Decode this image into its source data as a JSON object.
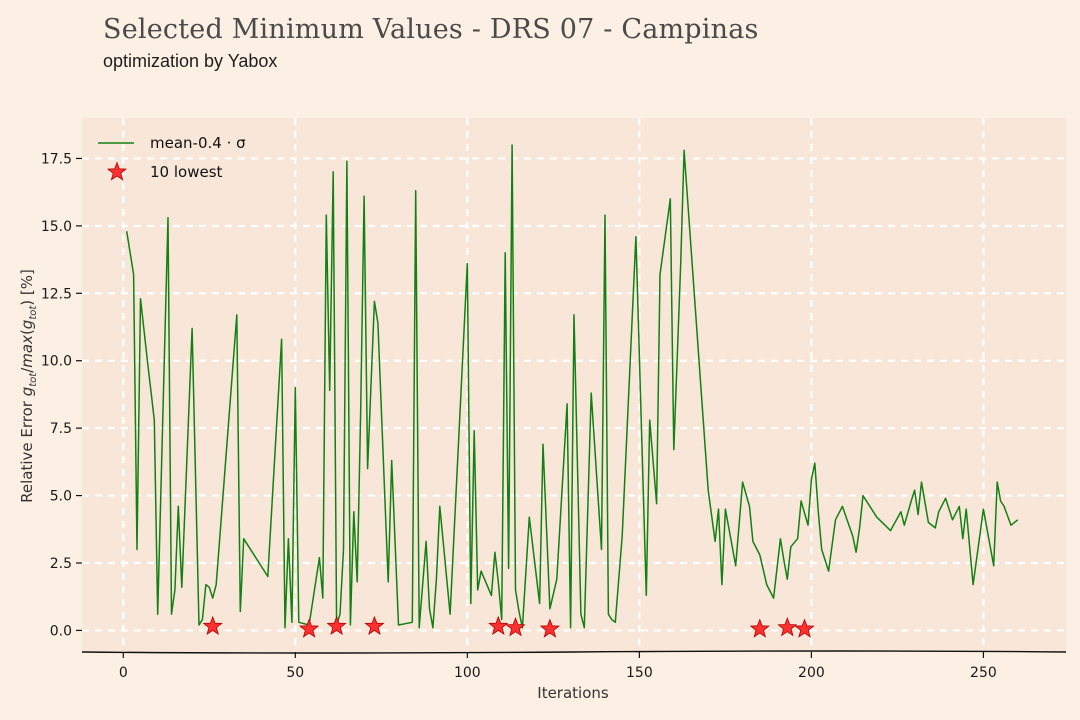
{
  "title": "Selected Minimum Values - DRS 07 - Campinas",
  "subtitle": "optimization by Yabox",
  "colors": {
    "figure_bg": "#fcf0e4",
    "plot_bg": "#f8e6d8",
    "grid": "#ffffff",
    "line": "#128012",
    "marker": "#ff3030"
  },
  "chart_data": {
    "type": "line",
    "title": "Selected Minimum Values - DRS 07 - Campinas",
    "subtitle": "optimization by Yabox",
    "xlabel": "Iterations",
    "ylabel": "Relative Error g_tot/max(g_tot) [%]",
    "xlim": [
      -12,
      274
    ],
    "ylim": [
      -0.8,
      19.0
    ],
    "xticks": [
      0,
      50,
      100,
      150,
      200,
      250
    ],
    "yticks": [
      0.0,
      2.5,
      5.0,
      7.5,
      10.0,
      12.5,
      15.0,
      17.5
    ],
    "xtick_labels": [
      "0",
      "50",
      "100",
      "150",
      "200",
      "250"
    ],
    "ytick_labels": [
      "0.0",
      "2.5",
      "5.0",
      "7.5",
      "10.0",
      "12.5",
      "15.0",
      "17.5"
    ],
    "grid": true,
    "legend_position": "top-left",
    "series": [
      {
        "name": "mean-0.4 · σ",
        "kind": "line",
        "x": [
          1,
          3,
          4,
          5,
          7,
          9,
          10,
          13,
          14,
          15,
          16,
          17,
          20,
          22,
          23,
          24,
          25,
          26,
          27,
          33,
          34,
          35,
          42,
          46,
          47,
          48,
          49,
          50,
          51,
          54,
          57,
          58,
          59,
          60,
          61,
          62,
          63,
          64,
          65,
          66,
          67,
          68,
          69,
          70,
          71,
          73,
          74,
          77,
          78,
          80,
          84,
          85,
          86,
          88,
          89,
          90,
          91,
          92,
          95,
          100,
          101,
          102,
          103,
          104,
          107,
          108,
          109,
          110,
          111,
          112,
          113,
          114,
          115,
          116,
          118,
          121,
          122,
          124,
          126,
          129,
          130,
          131,
          133,
          134,
          136,
          139,
          140,
          141,
          142,
          143,
          145,
          149,
          152,
          153,
          155,
          156,
          159,
          160,
          162,
          163,
          165,
          170,
          172,
          173,
          174,
          175,
          178,
          180,
          182,
          183,
          185,
          187,
          189,
          191,
          192,
          193,
          194,
          196,
          197,
          199,
          200,
          201,
          202,
          203,
          205,
          207,
          209,
          212,
          213,
          214,
          215,
          219,
          223,
          226,
          227,
          229,
          230,
          231,
          232,
          234,
          236,
          237,
          239,
          241,
          243,
          244,
          245,
          247,
          250,
          253,
          254,
          255,
          256,
          258,
          260
        ],
        "y": [
          14.8,
          13.2,
          3.0,
          12.3,
          10.0,
          7.8,
          0.6,
          15.3,
          0.6,
          1.5,
          4.6,
          1.6,
          11.2,
          0.2,
          0.4,
          1.7,
          1.6,
          1.2,
          1.7,
          11.7,
          0.7,
          3.4,
          2.0,
          10.8,
          0.1,
          3.4,
          0.3,
          9.0,
          0.3,
          0.2,
          2.7,
          1.2,
          15.4,
          8.9,
          17.0,
          0.2,
          0.6,
          3.0,
          17.4,
          0.2,
          4.4,
          1.8,
          8.2,
          16.1,
          6.0,
          12.2,
          11.4,
          1.8,
          6.3,
          0.2,
          0.3,
          16.3,
          0.1,
          3.3,
          0.8,
          0.1,
          1.9,
          4.6,
          0.6,
          13.6,
          1.0,
          7.4,
          1.5,
          2.2,
          1.3,
          2.9,
          1.8,
          0.4,
          14.0,
          2.3,
          18.0,
          1.5,
          0.7,
          0.1,
          4.2,
          1.0,
          6.9,
          0.8,
          1.9,
          8.4,
          0.1,
          11.7,
          0.6,
          0.1,
          8.8,
          3.0,
          15.4,
          0.6,
          0.4,
          0.3,
          3.5,
          14.6,
          1.3,
          7.8,
          4.7,
          13.2,
          16.0,
          6.7,
          13.6,
          17.8,
          14.2,
          5.2,
          3.3,
          4.5,
          1.7,
          4.5,
          2.4,
          5.5,
          4.6,
          3.3,
          2.8,
          1.7,
          1.2,
          3.4,
          2.6,
          1.9,
          3.1,
          3.4,
          4.8,
          3.9,
          5.6,
          6.2,
          4.4,
          3.0,
          2.2,
          4.1,
          4.6,
          3.5,
          2.9,
          3.8,
          5.0,
          4.2,
          3.7,
          4.4,
          3.9,
          4.8,
          5.2,
          4.3,
          5.5,
          4.0,
          3.8,
          4.4,
          4.9,
          4.1,
          4.6,
          3.4,
          4.5,
          1.7,
          4.5,
          2.4,
          5.5,
          4.8,
          4.6,
          3.9,
          4.1
        ]
      },
      {
        "name": "10 lowest",
        "kind": "scatter",
        "marker": "star",
        "x": [
          26,
          54,
          62,
          73,
          109,
          114,
          124,
          185,
          193,
          198
        ],
        "y": [
          0.15,
          0.05,
          0.15,
          0.15,
          0.15,
          0.1,
          0.05,
          0.05,
          0.1,
          0.05
        ]
      }
    ]
  }
}
